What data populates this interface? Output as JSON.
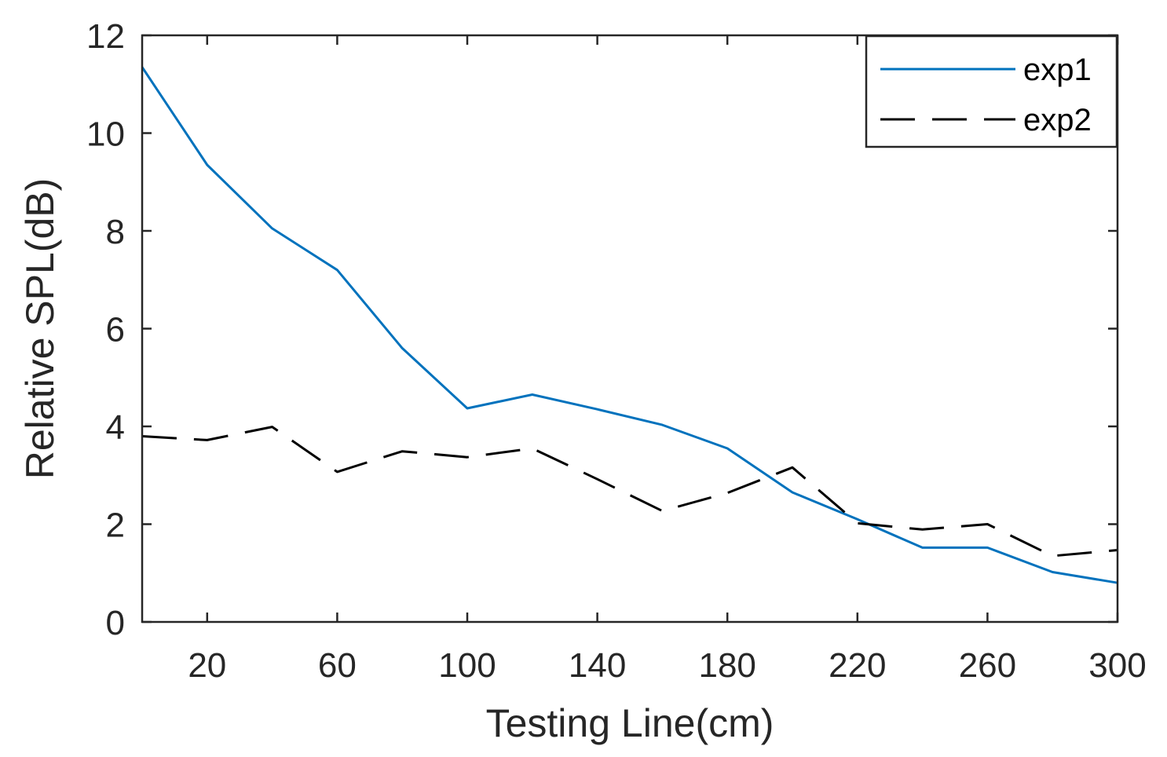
{
  "chart_data": {
    "type": "line",
    "title": "",
    "xlabel": "Testing Line(cm)",
    "ylabel": "Relative SPL(dB)",
    "xlim": [
      0,
      300
    ],
    "ylim": [
      0,
      12
    ],
    "xticks": [
      20,
      60,
      100,
      140,
      180,
      220,
      260,
      300
    ],
    "yticks": [
      0,
      2,
      4,
      6,
      8,
      10,
      12
    ],
    "xtick_labels": [
      "20",
      "60",
      "100",
      "140",
      "180",
      "220",
      "260",
      "300"
    ],
    "ytick_labels": [
      "0",
      "2",
      "4",
      "6",
      "8",
      "10",
      "12"
    ],
    "grid": false,
    "legend_position": "top-right",
    "x": [
      0,
      20,
      40,
      60,
      80,
      100,
      120,
      140,
      160,
      180,
      200,
      220,
      240,
      260,
      280,
      300
    ],
    "series": [
      {
        "name": "exp1",
        "style": "solid",
        "color": "#0072BD",
        "values": [
          11.35,
          9.35,
          8.05,
          7.2,
          5.6,
          4.37,
          4.65,
          4.35,
          4.03,
          3.55,
          2.65,
          2.1,
          1.52,
          1.52,
          1.02,
          0.8
        ]
      },
      {
        "name": "exp2",
        "style": "dashed",
        "color": "#000000",
        "values": [
          3.8,
          3.72,
          3.99,
          3.07,
          3.49,
          3.37,
          3.55,
          2.92,
          2.27,
          2.64,
          3.16,
          2.02,
          1.89,
          2.0,
          1.35,
          1.47
        ]
      }
    ]
  }
}
